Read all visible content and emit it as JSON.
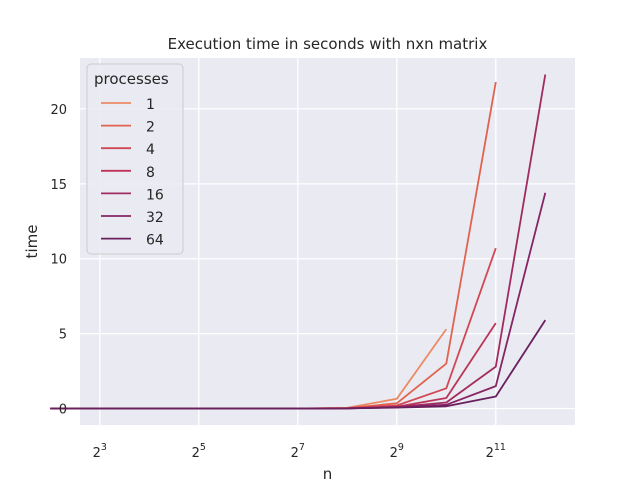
{
  "chart_data": {
    "type": "line",
    "title": "Execution time in seconds with nxn matrix",
    "xlabel": "n",
    "ylabel": "time",
    "x_scale": "log2",
    "xlim": [
      2.6,
      12.6
    ],
    "ylim": [
      -1.1,
      23.4
    ],
    "x_ticks": [
      {
        "value": 3,
        "base": "2",
        "exp": "3"
      },
      {
        "value": 5,
        "base": "2",
        "exp": "5"
      },
      {
        "value": 7,
        "base": "2",
        "exp": "7"
      },
      {
        "value": 9,
        "base": "2",
        "exp": "9"
      },
      {
        "value": 11,
        "base": "2",
        "exp": "11"
      }
    ],
    "y_ticks": [
      0,
      5,
      10,
      15,
      20
    ],
    "grid": true,
    "legend": {
      "title": "processes",
      "placement": "top-left"
    },
    "series": [
      {
        "name": "1",
        "color": "#eb8a65",
        "points": [
          [
            2,
            0
          ],
          [
            3,
            0
          ],
          [
            4,
            0
          ],
          [
            5,
            0
          ],
          [
            6,
            0
          ],
          [
            7,
            0
          ],
          [
            8,
            0.05
          ],
          [
            9,
            0.65
          ],
          [
            10,
            5.3
          ]
        ]
      },
      {
        "name": "2",
        "color": "#e0634f",
        "points": [
          [
            2,
            0
          ],
          [
            3,
            0
          ],
          [
            4,
            0
          ],
          [
            5,
            0
          ],
          [
            6,
            0
          ],
          [
            7,
            0
          ],
          [
            8,
            0.03
          ],
          [
            9,
            0.35
          ],
          [
            10,
            3.0
          ],
          [
            11,
            21.8
          ]
        ]
      },
      {
        "name": "4",
        "color": "#d14855",
        "points": [
          [
            2,
            0
          ],
          [
            3,
            0
          ],
          [
            4,
            0
          ],
          [
            5,
            0
          ],
          [
            6,
            0
          ],
          [
            7,
            0
          ],
          [
            8,
            0.02
          ],
          [
            9,
            0.2
          ],
          [
            10,
            1.35
          ],
          [
            11,
            10.7
          ]
        ]
      },
      {
        "name": "8",
        "color": "#bc3459",
        "points": [
          [
            2,
            0
          ],
          [
            3,
            0
          ],
          [
            4,
            0
          ],
          [
            5,
            0
          ],
          [
            6,
            0
          ],
          [
            7,
            0
          ],
          [
            8,
            0.01
          ],
          [
            9,
            0.12
          ],
          [
            10,
            0.7
          ],
          [
            11,
            5.7
          ]
        ]
      },
      {
        "name": "16",
        "color": "#a12b61",
        "points": [
          [
            2,
            0
          ],
          [
            3,
            0
          ],
          [
            4,
            0
          ],
          [
            5,
            0
          ],
          [
            6,
            0
          ],
          [
            7,
            0
          ],
          [
            8,
            0.01
          ],
          [
            9,
            0.1
          ],
          [
            10,
            0.4
          ],
          [
            11,
            2.8
          ],
          [
            12,
            22.3
          ]
        ]
      },
      {
        "name": "32",
        "color": "#852563",
        "points": [
          [
            2,
            0
          ],
          [
            3,
            0
          ],
          [
            4,
            0
          ],
          [
            5,
            0
          ],
          [
            6,
            0
          ],
          [
            7,
            0
          ],
          [
            8,
            0.01
          ],
          [
            9,
            0.08
          ],
          [
            10,
            0.25
          ],
          [
            11,
            1.5
          ],
          [
            12,
            14.4
          ]
        ]
      },
      {
        "name": "64",
        "color": "#6a205e",
        "points": [
          [
            2,
            0
          ],
          [
            3,
            0
          ],
          [
            4,
            0
          ],
          [
            5,
            0
          ],
          [
            6,
            0
          ],
          [
            7,
            0
          ],
          [
            8,
            0.01
          ],
          [
            9,
            0.06
          ],
          [
            10,
            0.15
          ],
          [
            11,
            0.8
          ],
          [
            12,
            5.9
          ]
        ]
      }
    ]
  }
}
